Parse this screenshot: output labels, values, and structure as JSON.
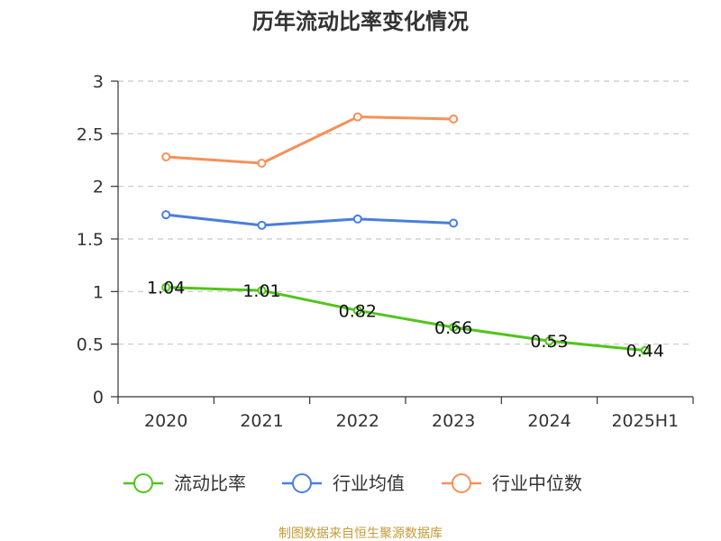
{
  "chart_data": {
    "type": "line",
    "title": "历年流动比率变化情况",
    "categories": [
      "2020",
      "2021",
      "2022",
      "2023",
      "2024",
      "2025H1"
    ],
    "ylim": [
      0,
      3
    ],
    "yticks": [
      "0",
      "0.5",
      "1",
      "1.5",
      "2",
      "2.5",
      "3"
    ],
    "grid": true,
    "legend_position": "bottom",
    "series": [
      {
        "name": "流动比率",
        "color": "#52c41a",
        "values": [
          1.04,
          1.01,
          0.82,
          0.66,
          0.53,
          0.44
        ],
        "labels": [
          "1.04",
          "1.01",
          "0.82",
          "0.66",
          "0.53",
          "0.44"
        ]
      },
      {
        "name": "行业均值",
        "color": "#4a7fdb",
        "values": [
          1.73,
          1.63,
          1.69,
          1.65,
          null,
          null
        ]
      },
      {
        "name": "行业中位数",
        "color": "#f4915a",
        "values": [
          2.28,
          2.22,
          2.66,
          2.64,
          null,
          null
        ]
      }
    ]
  },
  "source": "制图数据来自恒生聚源数据库"
}
